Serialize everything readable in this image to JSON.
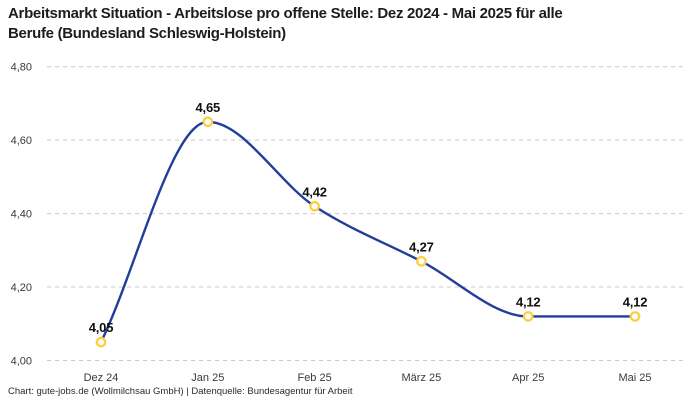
{
  "title": {
    "line1": "Arbeitsmarkt Situation - Arbeitslose pro offene Stelle: Dez 2024 - Mai 2025 für alle",
    "line2": "Berufe (Bundesland Schleswig-Holstein)"
  },
  "footer": {
    "text": "Chart: gute-jobs.de (Wollmilchsau GmbH) | Datenquelle: Bundesagentur für Arbeit"
  },
  "chart_data": {
    "type": "line",
    "title": "Arbeitsmarkt Situation - Arbeitslose pro offene Stelle: Dez 2024 - Mai 2025 für alle Berufe (Bundesland Schleswig-Holstein)",
    "categories": [
      "Dez 24",
      "Jan 25",
      "Feb 25",
      "März 25",
      "Apr 25",
      "Mai 25"
    ],
    "values": [
      4.05,
      4.65,
      4.42,
      4.27,
      4.12,
      4.12
    ],
    "point_labels": [
      "4,05",
      "4,65",
      "4,42",
      "4,27",
      "4,12",
      "4,12"
    ],
    "xlabel": "",
    "ylabel": "",
    "ylim": [
      4.0,
      4.8
    ],
    "y_ticks": {
      "values": [
        4.0,
        4.2,
        4.4,
        4.6,
        4.8
      ],
      "labels": [
        "4,00",
        "4,20",
        "4,40",
        "4,60",
        "4,80"
      ]
    },
    "grid": "horizontal-dashed",
    "legend": "none",
    "curve": "monotone",
    "colors": {
      "line": "#213e9a",
      "marker_ring": "#fdce44",
      "marker_fill": "#ffffff",
      "grid": "#c9c9c9",
      "tick_text": "#3a3a3a",
      "point_label_text": "#111111"
    }
  }
}
